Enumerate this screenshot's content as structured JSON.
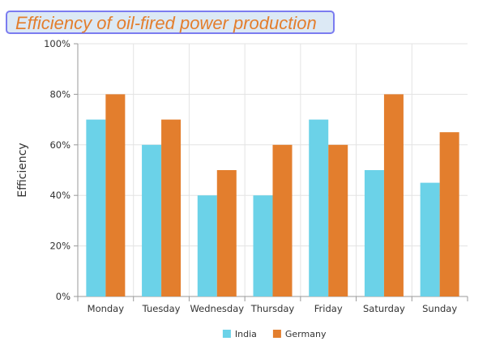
{
  "chart_data": {
    "type": "bar",
    "title": "Efficiency of oil-fired power production",
    "xlabel": "",
    "ylabel": "Efficiency",
    "categories": [
      "Monday",
      "Tuesday",
      "Wednesday",
      "Thursday",
      "Friday",
      "Saturday",
      "Sunday"
    ],
    "series": [
      {
        "name": "India",
        "color": "#6bd2e8",
        "values": [
          70,
          60,
          40,
          40,
          70,
          50,
          45
        ]
      },
      {
        "name": "Germany",
        "color": "#e37e2d",
        "values": [
          80,
          70,
          50,
          60,
          60,
          80,
          65
        ]
      }
    ],
    "ylim": [
      0,
      100
    ],
    "yticks": [
      0,
      20,
      40,
      60,
      80,
      100
    ],
    "ytick_labels": [
      "0%",
      "20%",
      "40%",
      "60%",
      "80%",
      "100%"
    ],
    "grid": true,
    "legend_position": "bottom-center"
  }
}
